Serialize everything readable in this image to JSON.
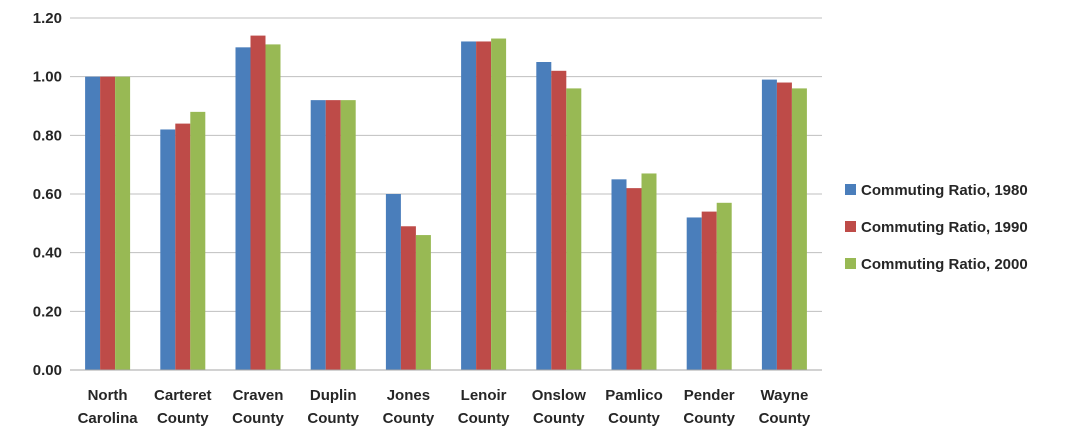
{
  "chart_data": {
    "type": "bar",
    "categories": [
      [
        "North",
        "Carolina"
      ],
      [
        "Carteret",
        "County"
      ],
      [
        "Craven",
        "County"
      ],
      [
        "Duplin",
        "County"
      ],
      [
        "Jones",
        "County"
      ],
      [
        "Lenoir",
        "County"
      ],
      [
        "Onslow",
        "County"
      ],
      [
        "Pamlico",
        "County"
      ],
      [
        "Pender",
        "County"
      ],
      [
        "Wayne",
        "County"
      ]
    ],
    "series": [
      {
        "name": "Commuting Ratio, 1980",
        "color": "#4A7EBB",
        "values": [
          1.0,
          0.82,
          1.1,
          0.92,
          0.6,
          1.12,
          1.05,
          0.65,
          0.52,
          0.99
        ]
      },
      {
        "name": "Commuting Ratio, 1990",
        "color": "#BE4B48",
        "values": [
          1.0,
          0.84,
          1.14,
          0.92,
          0.49,
          1.12,
          1.02,
          0.62,
          0.54,
          0.98
        ]
      },
      {
        "name": "Commuting Ratio, 2000",
        "color": "#98B954",
        "values": [
          1.0,
          0.88,
          1.11,
          0.92,
          0.46,
          1.13,
          0.96,
          0.67,
          0.57,
          0.96
        ]
      }
    ],
    "yticks": [
      "0.00",
      "0.20",
      "0.40",
      "0.60",
      "0.80",
      "1.00",
      "1.20"
    ],
    "ylim": [
      0,
      1.2
    ],
    "grid": true,
    "legend": "right"
  }
}
